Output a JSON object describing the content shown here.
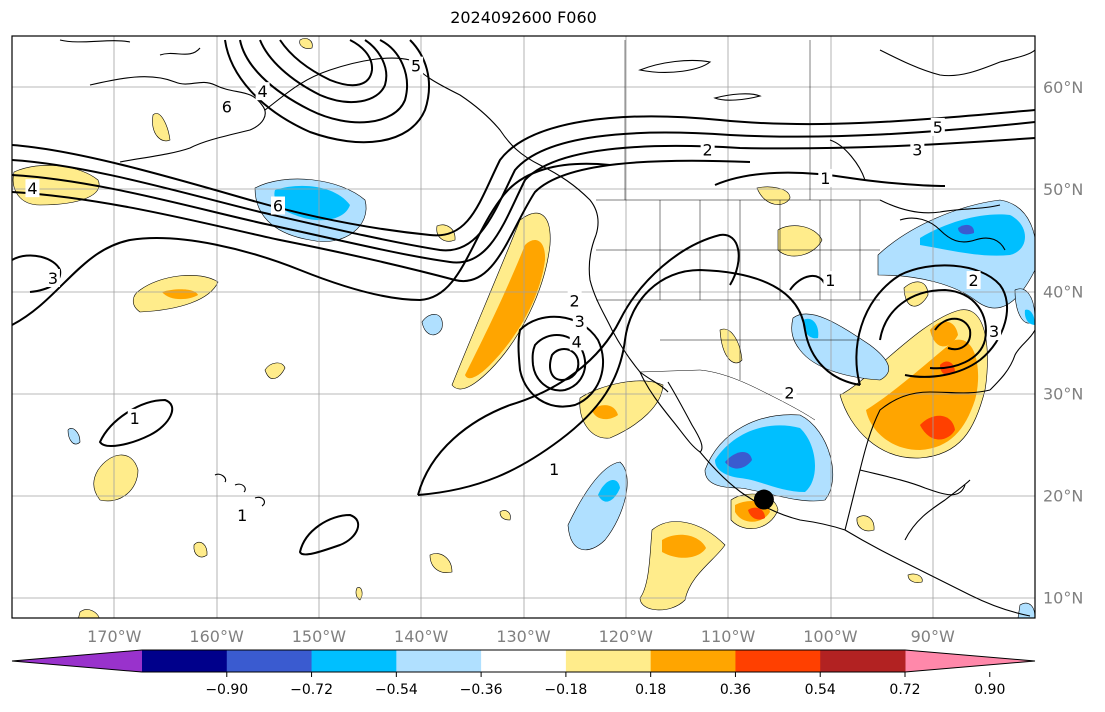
{
  "title": "2024092600 F060",
  "map": {
    "lat_labels": [
      {
        "lat": 60,
        "label": "60°N"
      },
      {
        "lat": 50,
        "label": "50°N"
      },
      {
        "lat": 40,
        "label": "40°N"
      },
      {
        "lat": 30,
        "label": "30°N"
      },
      {
        "lat": 20,
        "label": "20°N"
      },
      {
        "lat": 10,
        "label": "10°N"
      }
    ],
    "lon_labels": [
      {
        "lon": -170,
        "label": "170°W"
      },
      {
        "lon": -160,
        "label": "160°W"
      },
      {
        "lon": -150,
        "label": "150°W"
      },
      {
        "lon": -140,
        "label": "140°W"
      },
      {
        "lon": -130,
        "label": "130°W"
      },
      {
        "lon": -120,
        "label": "120°W"
      },
      {
        "lon": -110,
        "label": "110°W"
      },
      {
        "lon": -100,
        "label": "100°W"
      },
      {
        "lon": -90,
        "label": "90°W"
      }
    ],
    "extent": {
      "lon_min": -180,
      "lon_max": -80,
      "lat_min": 8,
      "lat_max": 65
    },
    "contour_labels": [
      {
        "text": "1",
        "lon": -100.5,
        "lat": 51.0
      },
      {
        "text": "2",
        "lon": -112.0,
        "lat": 53.8
      },
      {
        "text": "3",
        "lon": -91.5,
        "lat": 53.8
      },
      {
        "text": "5",
        "lon": -89.5,
        "lat": 56.0
      },
      {
        "text": "4",
        "lon": -155.5,
        "lat": 59.5
      },
      {
        "text": "5",
        "lon": -140.5,
        "lat": 62.0
      },
      {
        "text": "6",
        "lon": -159.0,
        "lat": 58.0
      },
      {
        "text": "6",
        "lon": -154.0,
        "lat": 48.3
      },
      {
        "text": "4",
        "lon": -178.0,
        "lat": 50.0
      },
      {
        "text": "3",
        "lon": -176.0,
        "lat": 41.2
      },
      {
        "text": "2",
        "lon": -125.0,
        "lat": 39.0
      },
      {
        "text": "3",
        "lon": -124.5,
        "lat": 37.0
      },
      {
        "text": "4",
        "lon": -124.8,
        "lat": 35.0
      },
      {
        "text": "1",
        "lon": -127.0,
        "lat": 22.5
      },
      {
        "text": "1",
        "lon": -168.0,
        "lat": 27.5
      },
      {
        "text": "1",
        "lon": -157.5,
        "lat": 18.0
      },
      {
        "text": "1",
        "lon": -100.0,
        "lat": 41.0
      },
      {
        "text": "2",
        "lon": -86.0,
        "lat": 41.0
      },
      {
        "text": "3",
        "lon": -84.0,
        "lat": 36.0
      },
      {
        "text": "2",
        "lon": -104.0,
        "lat": 30.0
      }
    ],
    "marker": {
      "lon": -106.5,
      "lat": 19.6,
      "color": "#000000"
    }
  },
  "colorbar": {
    "colors": [
      "#9932cc",
      "#00008b",
      "#3a5bd0",
      "#00bfff",
      "#b0e0ff",
      "#ffffff",
      "#ffec8b",
      "#ffa500",
      "#ff4000",
      "#b22222",
      "#ff88aa"
    ],
    "ticks": [
      "−0.90",
      "−0.72",
      "−0.54",
      "−0.36",
      "−0.18",
      "0.18",
      "0.36",
      "0.54",
      "0.72",
      "0.90"
    ]
  }
}
